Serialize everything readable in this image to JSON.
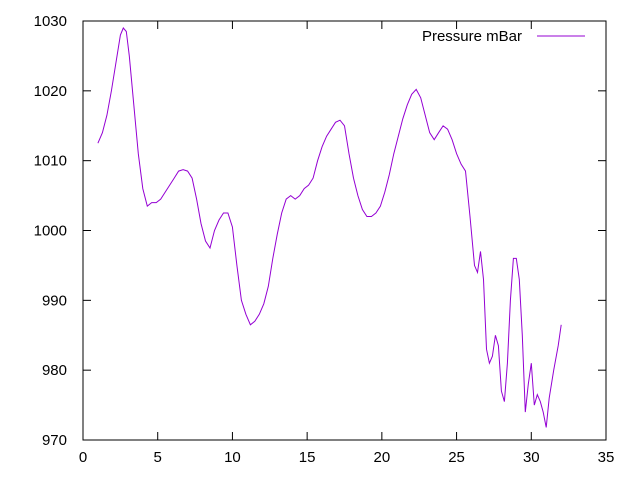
{
  "chart_data": {
    "type": "line",
    "title": "",
    "xlabel": "",
    "ylabel": "",
    "xlim": [
      0,
      35
    ],
    "ylim": [
      970,
      1030
    ],
    "xticks": [
      0,
      5,
      10,
      15,
      20,
      25,
      30,
      35
    ],
    "yticks": [
      970,
      980,
      990,
      1000,
      1010,
      1020,
      1030
    ],
    "grid": false,
    "legend": {
      "position": "top-right",
      "entries": [
        "Pressure mBar"
      ]
    },
    "colors": {
      "series": "#9400d3",
      "axes": "#000000"
    },
    "series": [
      {
        "name": "Pressure mBar",
        "points": [
          [
            1.0,
            1012.5
          ],
          [
            1.3,
            1014.0
          ],
          [
            1.6,
            1016.5
          ],
          [
            1.9,
            1020.0
          ],
          [
            2.2,
            1024.0
          ],
          [
            2.5,
            1028.0
          ],
          [
            2.7,
            1029.0
          ],
          [
            2.9,
            1028.5
          ],
          [
            3.1,
            1025.0
          ],
          [
            3.4,
            1018.0
          ],
          [
            3.7,
            1011.0
          ],
          [
            4.0,
            1006.0
          ],
          [
            4.3,
            1003.5
          ],
          [
            4.6,
            1004.0
          ],
          [
            4.9,
            1004.0
          ],
          [
            5.2,
            1004.5
          ],
          [
            5.5,
            1005.5
          ],
          [
            5.8,
            1006.5
          ],
          [
            6.1,
            1007.5
          ],
          [
            6.4,
            1008.5
          ],
          [
            6.7,
            1008.7
          ],
          [
            7.0,
            1008.5
          ],
          [
            7.3,
            1007.5
          ],
          [
            7.6,
            1004.5
          ],
          [
            7.9,
            1001.0
          ],
          [
            8.2,
            998.5
          ],
          [
            8.5,
            997.5
          ],
          [
            8.8,
            1000.0
          ],
          [
            9.1,
            1001.5
          ],
          [
            9.4,
            1002.5
          ],
          [
            9.7,
            1002.5
          ],
          [
            10.0,
            1000.5
          ],
          [
            10.3,
            995.0
          ],
          [
            10.6,
            990.0
          ],
          [
            10.9,
            988.0
          ],
          [
            11.2,
            986.5
          ],
          [
            11.5,
            987.0
          ],
          [
            11.8,
            988.0
          ],
          [
            12.1,
            989.5
          ],
          [
            12.4,
            992.0
          ],
          [
            12.7,
            996.0
          ],
          [
            13.0,
            999.5
          ],
          [
            13.3,
            1002.5
          ],
          [
            13.6,
            1004.5
          ],
          [
            13.9,
            1005.0
          ],
          [
            14.2,
            1004.5
          ],
          [
            14.5,
            1005.0
          ],
          [
            14.8,
            1006.0
          ],
          [
            15.1,
            1006.5
          ],
          [
            15.4,
            1007.5
          ],
          [
            15.7,
            1010.0
          ],
          [
            16.0,
            1012.0
          ],
          [
            16.3,
            1013.5
          ],
          [
            16.6,
            1014.5
          ],
          [
            16.9,
            1015.5
          ],
          [
            17.2,
            1015.8
          ],
          [
            17.5,
            1015.0
          ],
          [
            17.8,
            1011.0
          ],
          [
            18.1,
            1007.5
          ],
          [
            18.4,
            1005.0
          ],
          [
            18.7,
            1003.0
          ],
          [
            19.0,
            1002.0
          ],
          [
            19.3,
            1002.0
          ],
          [
            19.6,
            1002.5
          ],
          [
            19.9,
            1003.5
          ],
          [
            20.2,
            1005.5
          ],
          [
            20.5,
            1008.0
          ],
          [
            20.8,
            1011.0
          ],
          [
            21.1,
            1013.5
          ],
          [
            21.4,
            1016.0
          ],
          [
            21.7,
            1018.0
          ],
          [
            22.0,
            1019.5
          ],
          [
            22.3,
            1020.2
          ],
          [
            22.6,
            1019.0
          ],
          [
            22.9,
            1016.5
          ],
          [
            23.2,
            1014.0
          ],
          [
            23.5,
            1013.0
          ],
          [
            23.8,
            1014.0
          ],
          [
            24.1,
            1015.0
          ],
          [
            24.4,
            1014.5
          ],
          [
            24.7,
            1013.0
          ],
          [
            25.0,
            1011.0
          ],
          [
            25.3,
            1009.5
          ],
          [
            25.6,
            1008.5
          ],
          [
            25.9,
            1002.0
          ],
          [
            26.2,
            995.0
          ],
          [
            26.4,
            994.0
          ],
          [
            26.6,
            997.0
          ],
          [
            26.8,
            993.0
          ],
          [
            27.0,
            983.0
          ],
          [
            27.2,
            981.0
          ],
          [
            27.4,
            982.0
          ],
          [
            27.6,
            985.0
          ],
          [
            27.8,
            983.5
          ],
          [
            28.0,
            977.0
          ],
          [
            28.2,
            975.5
          ],
          [
            28.4,
            981.0
          ],
          [
            28.6,
            990.0
          ],
          [
            28.8,
            996.0
          ],
          [
            29.0,
            996.0
          ],
          [
            29.2,
            993.0
          ],
          [
            29.4,
            985.0
          ],
          [
            29.6,
            974.0
          ],
          [
            29.8,
            978.0
          ],
          [
            30.0,
            981.0
          ],
          [
            30.2,
            975.0
          ],
          [
            30.4,
            976.5
          ],
          [
            30.6,
            975.5
          ],
          [
            30.8,
            974.0
          ],
          [
            31.0,
            971.8
          ],
          [
            31.2,
            976.0
          ],
          [
            31.5,
            980.0
          ],
          [
            31.8,
            983.5
          ],
          [
            32.0,
            986.5
          ]
        ]
      }
    ]
  }
}
